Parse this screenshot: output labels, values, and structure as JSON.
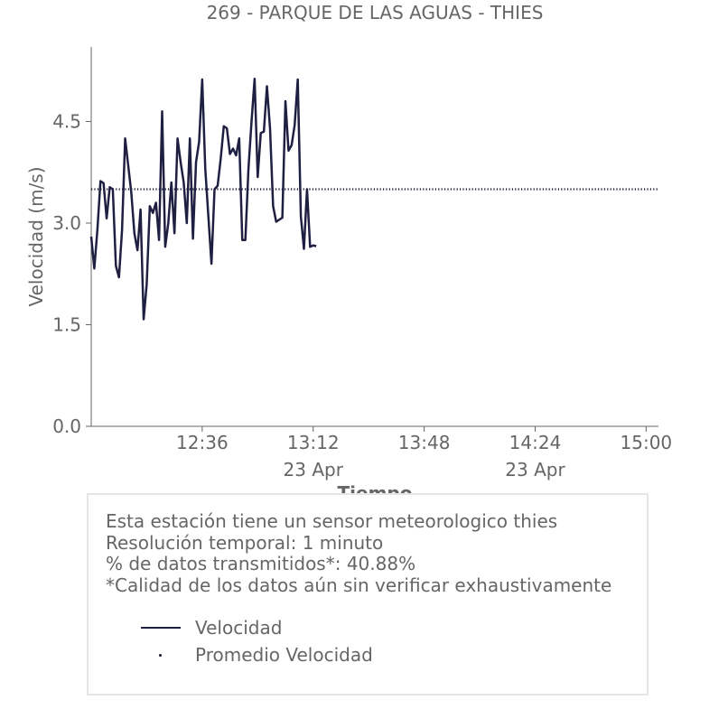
{
  "chart_data": {
    "type": "line",
    "title": "269 - PARQUE DE LAS AGUAS - THIES",
    "xlabel": "Tiempo",
    "ylabel": "Velocidad (m/s)",
    "ylim": [
      0,
      5.6
    ],
    "xlim": [
      "12:00",
      "15:04"
    ],
    "y_ticks": [
      "0.0",
      "1.5",
      "3.0",
      "4.5"
    ],
    "y_tick_values": [
      0,
      1.5,
      3.0,
      4.5
    ],
    "x_ticks": [
      {
        "time": "12:36",
        "label": "12:36",
        "sublabel": ""
      },
      {
        "time": "13:12",
        "label": "13:12",
        "sublabel": "23 Apr"
      },
      {
        "time": "13:48",
        "label": "13:48",
        "sublabel": ""
      },
      {
        "time": "14:24",
        "label": "14:24",
        "sublabel": "23 Apr"
      },
      {
        "time": "15:00",
        "label": "15:00",
        "sublabel": ""
      }
    ],
    "grid": false,
    "series": [
      {
        "name": "Velocidad",
        "color": "#1f2041",
        "style": "solid",
        "points": [
          [
            "12:00",
            2.8
          ],
          [
            "12:01",
            2.33
          ],
          [
            "12:02",
            2.9
          ],
          [
            "12:03",
            3.62
          ],
          [
            "12:04",
            3.59
          ],
          [
            "12:05",
            3.07
          ],
          [
            "12:06",
            3.53
          ],
          [
            "12:07",
            3.5
          ],
          [
            "12:08",
            2.37
          ],
          [
            "12:09",
            2.2
          ],
          [
            "12:10",
            2.9
          ],
          [
            "12:11",
            4.25
          ],
          [
            "12:12",
            3.85
          ],
          [
            "12:13",
            3.45
          ],
          [
            "12:14",
            2.85
          ],
          [
            "12:15",
            2.6
          ],
          [
            "12:16",
            3.2
          ],
          [
            "12:17",
            1.58
          ],
          [
            "12:18",
            2.1
          ],
          [
            "12:19",
            3.25
          ],
          [
            "12:20",
            3.15
          ],
          [
            "12:21",
            3.3
          ],
          [
            "12:22",
            2.75
          ],
          [
            "12:23",
            4.65
          ],
          [
            "12:24",
            2.65
          ],
          [
            "12:25",
            3.0
          ],
          [
            "12:26",
            3.6
          ],
          [
            "12:27",
            2.85
          ],
          [
            "12:28",
            4.25
          ],
          [
            "12:29",
            3.9
          ],
          [
            "12:30",
            3.6
          ],
          [
            "12:31",
            3.0
          ],
          [
            "12:32",
            4.25
          ],
          [
            "12:33",
            2.77
          ],
          [
            "12:34",
            3.9
          ],
          [
            "12:35",
            4.2
          ],
          [
            "12:36",
            5.12
          ],
          [
            "12:37",
            3.8
          ],
          [
            "12:38",
            3.1
          ],
          [
            "12:39",
            2.4
          ],
          [
            "12:40",
            3.5
          ],
          [
            "12:41",
            3.55
          ],
          [
            "12:42",
            3.95
          ],
          [
            "12:43",
            4.43
          ],
          [
            "12:44",
            4.4
          ],
          [
            "12:45",
            4.02
          ],
          [
            "12:46",
            4.1
          ],
          [
            "12:47",
            4.0
          ],
          [
            "12:48",
            4.25
          ],
          [
            "12:49",
            2.75
          ],
          [
            "12:50",
            2.75
          ],
          [
            "12:51",
            3.8
          ],
          [
            "12:52",
            4.5
          ],
          [
            "12:53",
            5.13
          ],
          [
            "12:54",
            3.68
          ],
          [
            "12:55",
            4.33
          ],
          [
            "12:56",
            4.35
          ],
          [
            "12:57",
            5.02
          ],
          [
            "12:58",
            4.4
          ],
          [
            "12:59",
            3.25
          ],
          [
            "13:00",
            3.02
          ],
          [
            "13:01",
            3.05
          ],
          [
            "13:02",
            3.08
          ],
          [
            "13:03",
            4.8
          ],
          [
            "13:04",
            4.07
          ],
          [
            "13:05",
            4.15
          ],
          [
            "13:06",
            4.45
          ],
          [
            "13:07",
            5.12
          ],
          [
            "13:08",
            3.1
          ],
          [
            "13:09",
            2.62
          ],
          [
            "13:10",
            3.5
          ],
          [
            "13:11",
            2.65
          ],
          [
            "13:12",
            2.67
          ],
          [
            "13:13",
            2.66
          ]
        ]
      },
      {
        "name": "Promedio Velocidad",
        "color": "#1f2041",
        "style": "dotted",
        "constant": 3.5
      }
    ]
  },
  "info_box": {
    "lines": [
      "Esta estación tiene un sensor meteorologico thies",
      "Resolución temporal: 1 minuto",
      "% de datos transmitidos*: 40.88%",
      "*Calidad de los datos aún sin verificar exhaustivamente"
    ],
    "legend": [
      {
        "label": "Velocidad",
        "marker": "line"
      },
      {
        "label": "Promedio Velocidad",
        "marker": "dot"
      }
    ]
  }
}
